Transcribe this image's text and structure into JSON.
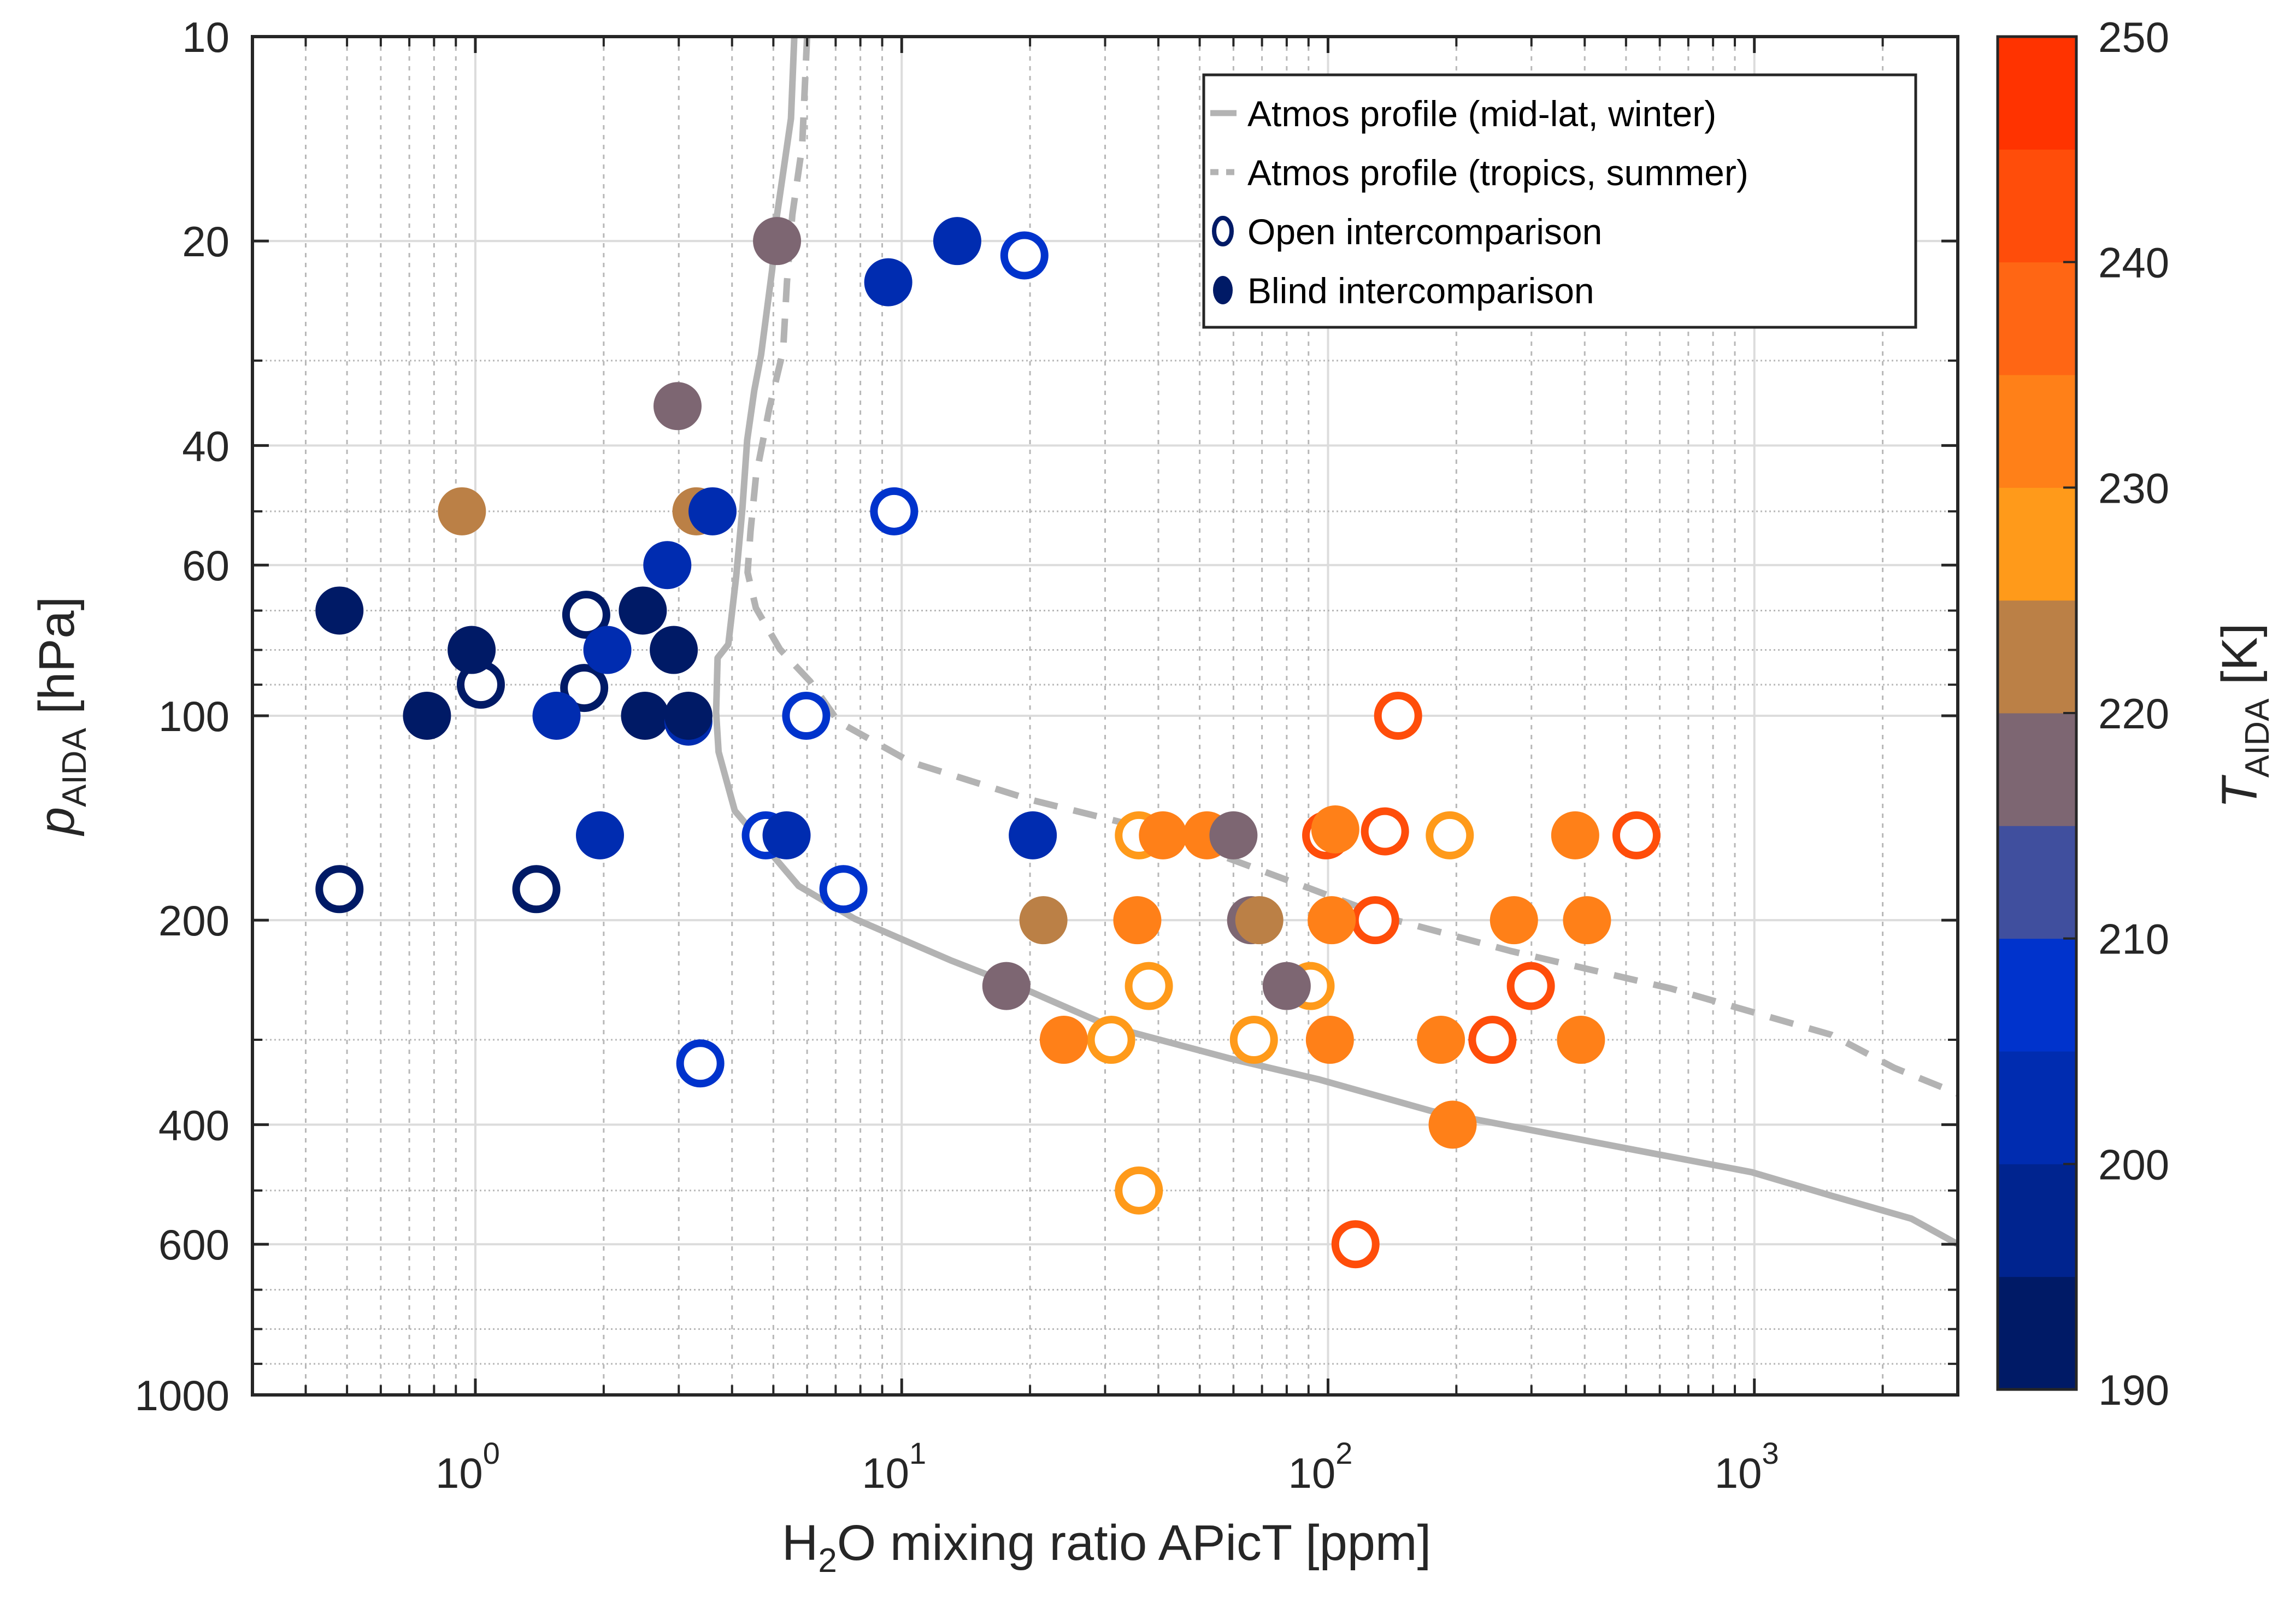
{
  "chart_data": {
    "type": "scatter",
    "title": "",
    "xlabel": {
      "main": "H",
      "sub": "2",
      "rest": "O mixing ratio APicT [ppm]"
    },
    "ylabel": {
      "main": "p",
      "sub": "AIDA",
      "rest": " [hPa]"
    },
    "xscale": "log",
    "yscale": "log",
    "y_reversed": true,
    "xlim": [
      0.3,
      3000
    ],
    "ylim": [
      10,
      1000
    ],
    "grid": true,
    "minor_grid": true,
    "xticks": [
      {
        "value": 1,
        "base": "10",
        "exp": "0"
      },
      {
        "value": 10,
        "base": "10",
        "exp": "1"
      },
      {
        "value": 100,
        "base": "10",
        "exp": "2"
      },
      {
        "value": 1000,
        "base": "10",
        "exp": "3"
      }
    ],
    "yticks": [
      {
        "value": 10,
        "label": "10"
      },
      {
        "value": 20,
        "label": "20"
      },
      {
        "value": 40,
        "label": "40"
      },
      {
        "value": 60,
        "label": "60"
      },
      {
        "value": 100,
        "label": "100"
      },
      {
        "value": 200,
        "label": "200"
      },
      {
        "value": 400,
        "label": "400"
      },
      {
        "value": 600,
        "label": "600"
      },
      {
        "value": 1000,
        "label": "1000"
      }
    ],
    "colorbar": {
      "label": {
        "main": "T",
        "sub": "AIDA",
        "rest": " [K]"
      },
      "range": [
        190,
        250
      ],
      "ticks": [
        "190",
        "200",
        "210",
        "220",
        "230",
        "240",
        "250"
      ],
      "tick_values": [
        190,
        200,
        210,
        220,
        230,
        240,
        250
      ],
      "bins": [
        {
          "from": 190,
          "to": 195,
          "color": "#001a66"
        },
        {
          "from": 195,
          "to": 200,
          "color": "#00248f"
        },
        {
          "from": 200,
          "to": 205,
          "color": "#002cb0"
        },
        {
          "from": 205,
          "to": 210,
          "color": "#0033cc"
        },
        {
          "from": 210,
          "to": 215,
          "color": "#404f9e"
        },
        {
          "from": 215,
          "to": 220,
          "color": "#7d6672"
        },
        {
          "from": 220,
          "to": 225,
          "color": "#bb8046"
        },
        {
          "from": 225,
          "to": 230,
          "color": "#ff9a1a"
        },
        {
          "from": 230,
          "to": 235,
          "color": "#ff8018"
        },
        {
          "from": 235,
          "to": 240,
          "color": "#ff6614"
        },
        {
          "from": 240,
          "to": 245,
          "color": "#ff4d0a"
        },
        {
          "from": 245,
          "to": 250,
          "color": "#ff3300"
        }
      ],
      "legend_position": "right"
    },
    "legend": {
      "position": "top-right",
      "entries": [
        {
          "label": "Atmos profile (mid-lat, winter)",
          "style": "solid-line"
        },
        {
          "label": "Atmos profile (tropics, summer)",
          "style": "dashed-line"
        },
        {
          "label": "Open intercomparison",
          "style": "open-circle"
        },
        {
          "label": "Blind intercomparison",
          "style": "filled-circle"
        }
      ],
      "line_color": "#b3b3b3",
      "marker_color": "#001a66"
    },
    "series": [
      {
        "name": "Atmos profile (mid-lat, winter)",
        "type": "line",
        "style": "solid",
        "color": "#b3b3b3",
        "x": [
          5.6,
          5.5,
          5.1,
          4.97,
          4.68,
          4.51,
          4.34,
          4.23,
          4.09,
          3.92,
          3.7,
          3.67,
          3.72,
          4.06,
          5.73,
          7.75,
          13.0,
          20.1,
          30.9,
          59.3,
          95,
          175,
          268,
          516,
          986,
          1517,
          2333,
          3000
        ],
        "y": [
          10,
          13.2,
          18.3,
          22,
          29.4,
          33.2,
          39.3,
          49.5,
          62.4,
          78.5,
          82.2,
          98.9,
          113,
          138,
          178,
          199,
          229,
          255,
          287,
          320,
          343,
          382,
          402,
          435,
          470,
          509,
          550,
          600
        ]
      },
      {
        "name": "Atmos profile (tropics, summer)",
        "type": "line",
        "style": "dashed",
        "color": "#b3b3b3",
        "x": [
          6.0,
          5.84,
          5.54,
          5.38,
          5.27,
          4.89,
          4.55,
          4.42,
          4.35,
          4.55,
          5.18,
          6.1,
          7.1,
          10.5,
          20.1,
          38.3,
          91.5,
          140,
          268,
          635,
          1517,
          2130,
          3000
        ],
        "y": [
          10,
          14.5,
          18.3,
          23,
          29,
          35.3,
          44.5,
          53.5,
          61.5,
          69.4,
          79.8,
          89,
          102,
          117,
          133,
          147,
          180,
          199,
          222,
          252,
          295,
          330,
          360
        ]
      },
      {
        "name": "Open intercomparison",
        "type": "scatter",
        "marker": "open-circle",
        "points": [
          {
            "x": 19.4,
            "p": 21,
            "T": 207.5
          },
          {
            "x": 9.6,
            "p": 50,
            "T": 207.5
          },
          {
            "x": 1.82,
            "p": 71,
            "T": 192.5
          },
          {
            "x": 1.03,
            "p": 90,
            "T": 192.5
          },
          {
            "x": 1.8,
            "p": 91,
            "T": 192.5
          },
          {
            "x": 5.97,
            "p": 100,
            "T": 207.5
          },
          {
            "x": 4.8,
            "p": 150,
            "T": 207.5
          },
          {
            "x": 0.48,
            "p": 180,
            "T": 192.5
          },
          {
            "x": 1.39,
            "p": 180,
            "T": 192.5
          },
          {
            "x": 7.3,
            "p": 180,
            "T": 207.5
          },
          {
            "x": 3.37,
            "p": 325,
            "T": 207.5
          },
          {
            "x": 146,
            "p": 100,
            "T": 242.5
          },
          {
            "x": 36,
            "p": 150,
            "T": 227.5
          },
          {
            "x": 99,
            "p": 150,
            "T": 242.5
          },
          {
            "x": 136,
            "p": 148,
            "T": 242.5
          },
          {
            "x": 193,
            "p": 150,
            "T": 227.5
          },
          {
            "x": 529,
            "p": 150,
            "T": 242.5
          },
          {
            "x": 129,
            "p": 200,
            "T": 242.5
          },
          {
            "x": 38,
            "p": 250,
            "T": 227.5
          },
          {
            "x": 91,
            "p": 250,
            "T": 227.5
          },
          {
            "x": 299,
            "p": 250,
            "T": 242.5
          },
          {
            "x": 31,
            "p": 300,
            "T": 227.5
          },
          {
            "x": 67,
            "p": 300,
            "T": 227.5
          },
          {
            "x": 243,
            "p": 300,
            "T": 242.5
          },
          {
            "x": 36,
            "p": 500,
            "T": 227.5
          },
          {
            "x": 116,
            "p": 600,
            "T": 242.5
          }
        ]
      },
      {
        "name": "Blind intercomparison",
        "type": "scatter",
        "marker": "filled-circle",
        "points": [
          {
            "x": 5.1,
            "p": 20,
            "T": 217.5
          },
          {
            "x": 9.3,
            "p": 23,
            "T": 202.5
          },
          {
            "x": 13.5,
            "p": 20,
            "T": 202.5
          },
          {
            "x": 2.98,
            "p": 35,
            "T": 217.5
          },
          {
            "x": 0.93,
            "p": 50,
            "T": 222.5
          },
          {
            "x": 3.3,
            "p": 50,
            "T": 222.5
          },
          {
            "x": 3.6,
            "p": 50,
            "T": 202.5
          },
          {
            "x": 2.82,
            "p": 60,
            "T": 202.5
          },
          {
            "x": 0.48,
            "p": 70,
            "T": 192.5
          },
          {
            "x": 2.47,
            "p": 70,
            "T": 192.5
          },
          {
            "x": 0.98,
            "p": 80,
            "T": 192.5
          },
          {
            "x": 2.04,
            "p": 80,
            "T": 202.5
          },
          {
            "x": 2.92,
            "p": 80,
            "T": 192.5
          },
          {
            "x": 0.77,
            "p": 100,
            "T": 192.5
          },
          {
            "x": 1.55,
            "p": 100,
            "T": 202.5
          },
          {
            "x": 2.5,
            "p": 100,
            "T": 192.5
          },
          {
            "x": 3.16,
            "p": 102,
            "T": 202.5
          },
          {
            "x": 3.16,
            "p": 100,
            "T": 192.5
          },
          {
            "x": 1.96,
            "p": 150,
            "T": 202.5
          },
          {
            "x": 5.37,
            "p": 150,
            "T": 202.5
          },
          {
            "x": 20.3,
            "p": 150,
            "T": 202.5
          },
          {
            "x": 41,
            "p": 150,
            "T": 232.5
          },
          {
            "x": 52,
            "p": 150,
            "T": 232.5
          },
          {
            "x": 60,
            "p": 150,
            "T": 217.5
          },
          {
            "x": 104,
            "p": 147,
            "T": 232.5
          },
          {
            "x": 380,
            "p": 150,
            "T": 232.5
          },
          {
            "x": 21.5,
            "p": 200,
            "T": 222.5
          },
          {
            "x": 35.7,
            "p": 200,
            "T": 232.5
          },
          {
            "x": 66,
            "p": 200,
            "T": 217.5
          },
          {
            "x": 69,
            "p": 200,
            "T": 222.5
          },
          {
            "x": 102,
            "p": 200,
            "T": 232.5
          },
          {
            "x": 273,
            "p": 200,
            "T": 232.5
          },
          {
            "x": 405,
            "p": 200,
            "T": 232.5
          },
          {
            "x": 17.6,
            "p": 250,
            "T": 217.5
          },
          {
            "x": 80,
            "p": 250,
            "T": 217.5
          },
          {
            "x": 24,
            "p": 300,
            "T": 232.5
          },
          {
            "x": 101,
            "p": 300,
            "T": 232.5
          },
          {
            "x": 184,
            "p": 300,
            "T": 232.5
          },
          {
            "x": 392,
            "p": 300,
            "T": 232.5
          },
          {
            "x": 196,
            "p": 400,
            "T": 232.5
          }
        ]
      }
    ]
  }
}
